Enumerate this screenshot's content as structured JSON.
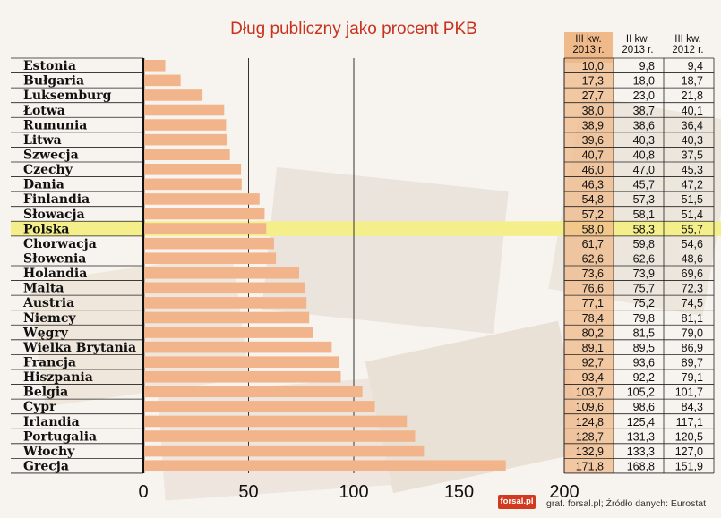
{
  "title": "Dług publiczny jako procent PKB",
  "columns": [
    {
      "line1": "III kw.",
      "line2": "2013 r."
    },
    {
      "line1": "II kw.",
      "line2": "2013 r."
    },
    {
      "line1": "III kw.",
      "line2": "2012 r."
    }
  ],
  "footer": "graf. forsal.pl; Źródło danych: Eurostat",
  "logo": "forsal.pl",
  "colors": {
    "bar": "#f2b48a",
    "highlight": "#f4ef8a",
    "title": "#c8321e",
    "col_bg": "#f0b98a"
  },
  "chart_data": {
    "type": "bar",
    "orientation": "horizontal",
    "title": "Dług publiczny jako procent PKB",
    "xlim": [
      0,
      200
    ],
    "xticks": [
      "0",
      "50",
      "100",
      "150",
      "200"
    ],
    "grid": true,
    "highlight": "Polska",
    "categories": [
      "Estonia",
      "Bułgaria",
      "Luksemburg",
      "Łotwa",
      "Rumunia",
      "Litwa",
      "Szwecja",
      "Czechy",
      "Dania",
      "Finlandia",
      "Słowacja",
      "Polska",
      "Chorwacja",
      "Słowenia",
      "Holandia",
      "Malta",
      "Austria",
      "Niemcy",
      "Węgry",
      "Wielka Brytania",
      "Francja",
      "Hiszpania",
      "Belgia",
      "Cypr",
      "Irlandia",
      "Portugalia",
      "Włochy",
      "Grecja"
    ],
    "values": [
      10.0,
      17.3,
      27.7,
      38.0,
      38.9,
      39.6,
      40.7,
      46.0,
      46.3,
      54.8,
      57.2,
      58.0,
      61.7,
      62.6,
      73.6,
      76.6,
      77.1,
      78.4,
      80.2,
      89.1,
      92.7,
      93.4,
      103.7,
      109.6,
      124.8,
      128.7,
      132.9,
      171.8
    ],
    "table": {
      "q3_2013": [
        "10,0",
        "17,3",
        "27,7",
        "38,0",
        "38,9",
        "39,6",
        "40,7",
        "46,0",
        "46,3",
        "54,8",
        "57,2",
        "58,0",
        "61,7",
        "62,6",
        "73,6",
        "76,6",
        "77,1",
        "78,4",
        "80,2",
        "89,1",
        "92,7",
        "93,4",
        "103,7",
        "109,6",
        "124,8",
        "128,7",
        "132,9",
        "171,8"
      ],
      "q2_2013": [
        "9,8",
        "18,0",
        "23,0",
        "38,7",
        "38,6",
        "40,3",
        "40,8",
        "47,0",
        "45,7",
        "57,3",
        "58,1",
        "58,3",
        "59,8",
        "62,6",
        "73,9",
        "75,7",
        "75,2",
        "79,8",
        "81,5",
        "89,5",
        "93,6",
        "92,2",
        "105,2",
        "98,6",
        "125,4",
        "131,3",
        "133,3",
        "168,8"
      ],
      "q3_2012": [
        "9,4",
        "18,7",
        "21,8",
        "40,1",
        "36,4",
        "40,3",
        "37,5",
        "45,3",
        "47,2",
        "51,5",
        "51,4",
        "55,7",
        "54,6",
        "48,6",
        "69,6",
        "72,3",
        "74,5",
        "81,1",
        "79,0",
        "86,9",
        "89,7",
        "79,1",
        "101,7",
        "84,3",
        "117,1",
        "120,5",
        "127,0",
        "151,9"
      ]
    }
  }
}
